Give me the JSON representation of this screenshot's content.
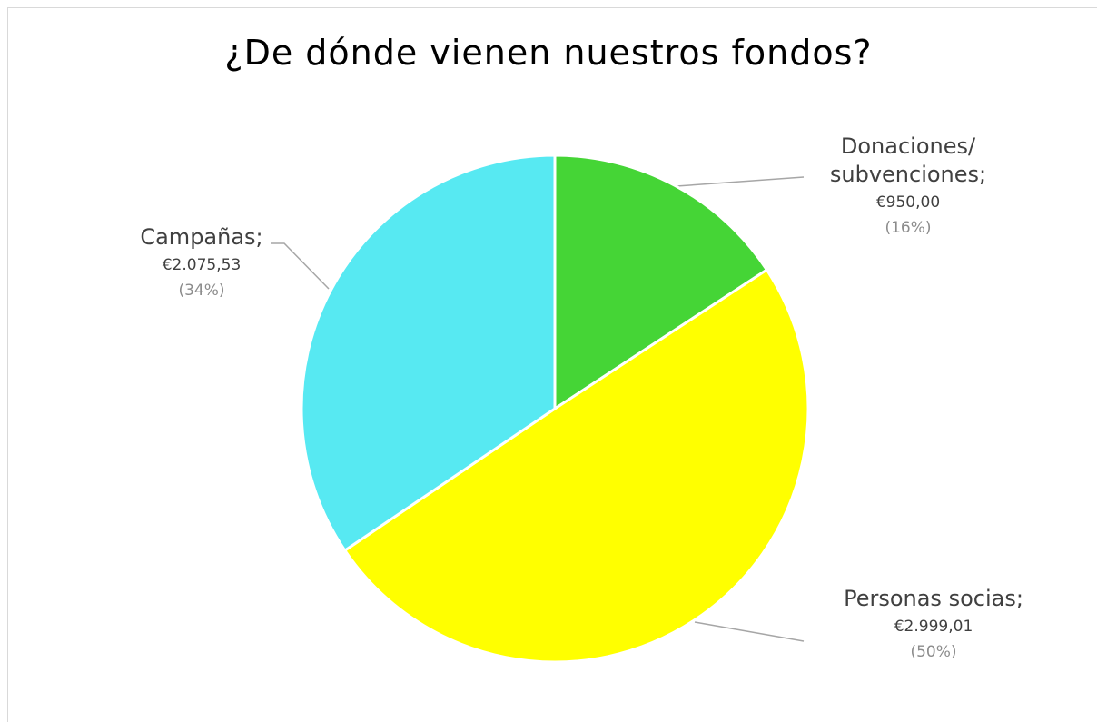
{
  "chart_data": {
    "type": "pie",
    "title": "¿De dónde vienen nuestros fondos?",
    "categories": [
      "Donaciones/ subvenciones;",
      "Personas socias;",
      "Campañas;"
    ],
    "values": [
      950.0,
      2999.01,
      2075.53
    ],
    "value_labels": [
      "€950,00",
      "€2.999,01",
      "€2.075,53"
    ],
    "percents": [
      16,
      50,
      34
    ],
    "percent_labels": [
      "(16%)",
      "(50%)",
      "(34%)"
    ],
    "colors": [
      "#45d536",
      "#ffff00",
      "#57e9f2"
    ]
  }
}
